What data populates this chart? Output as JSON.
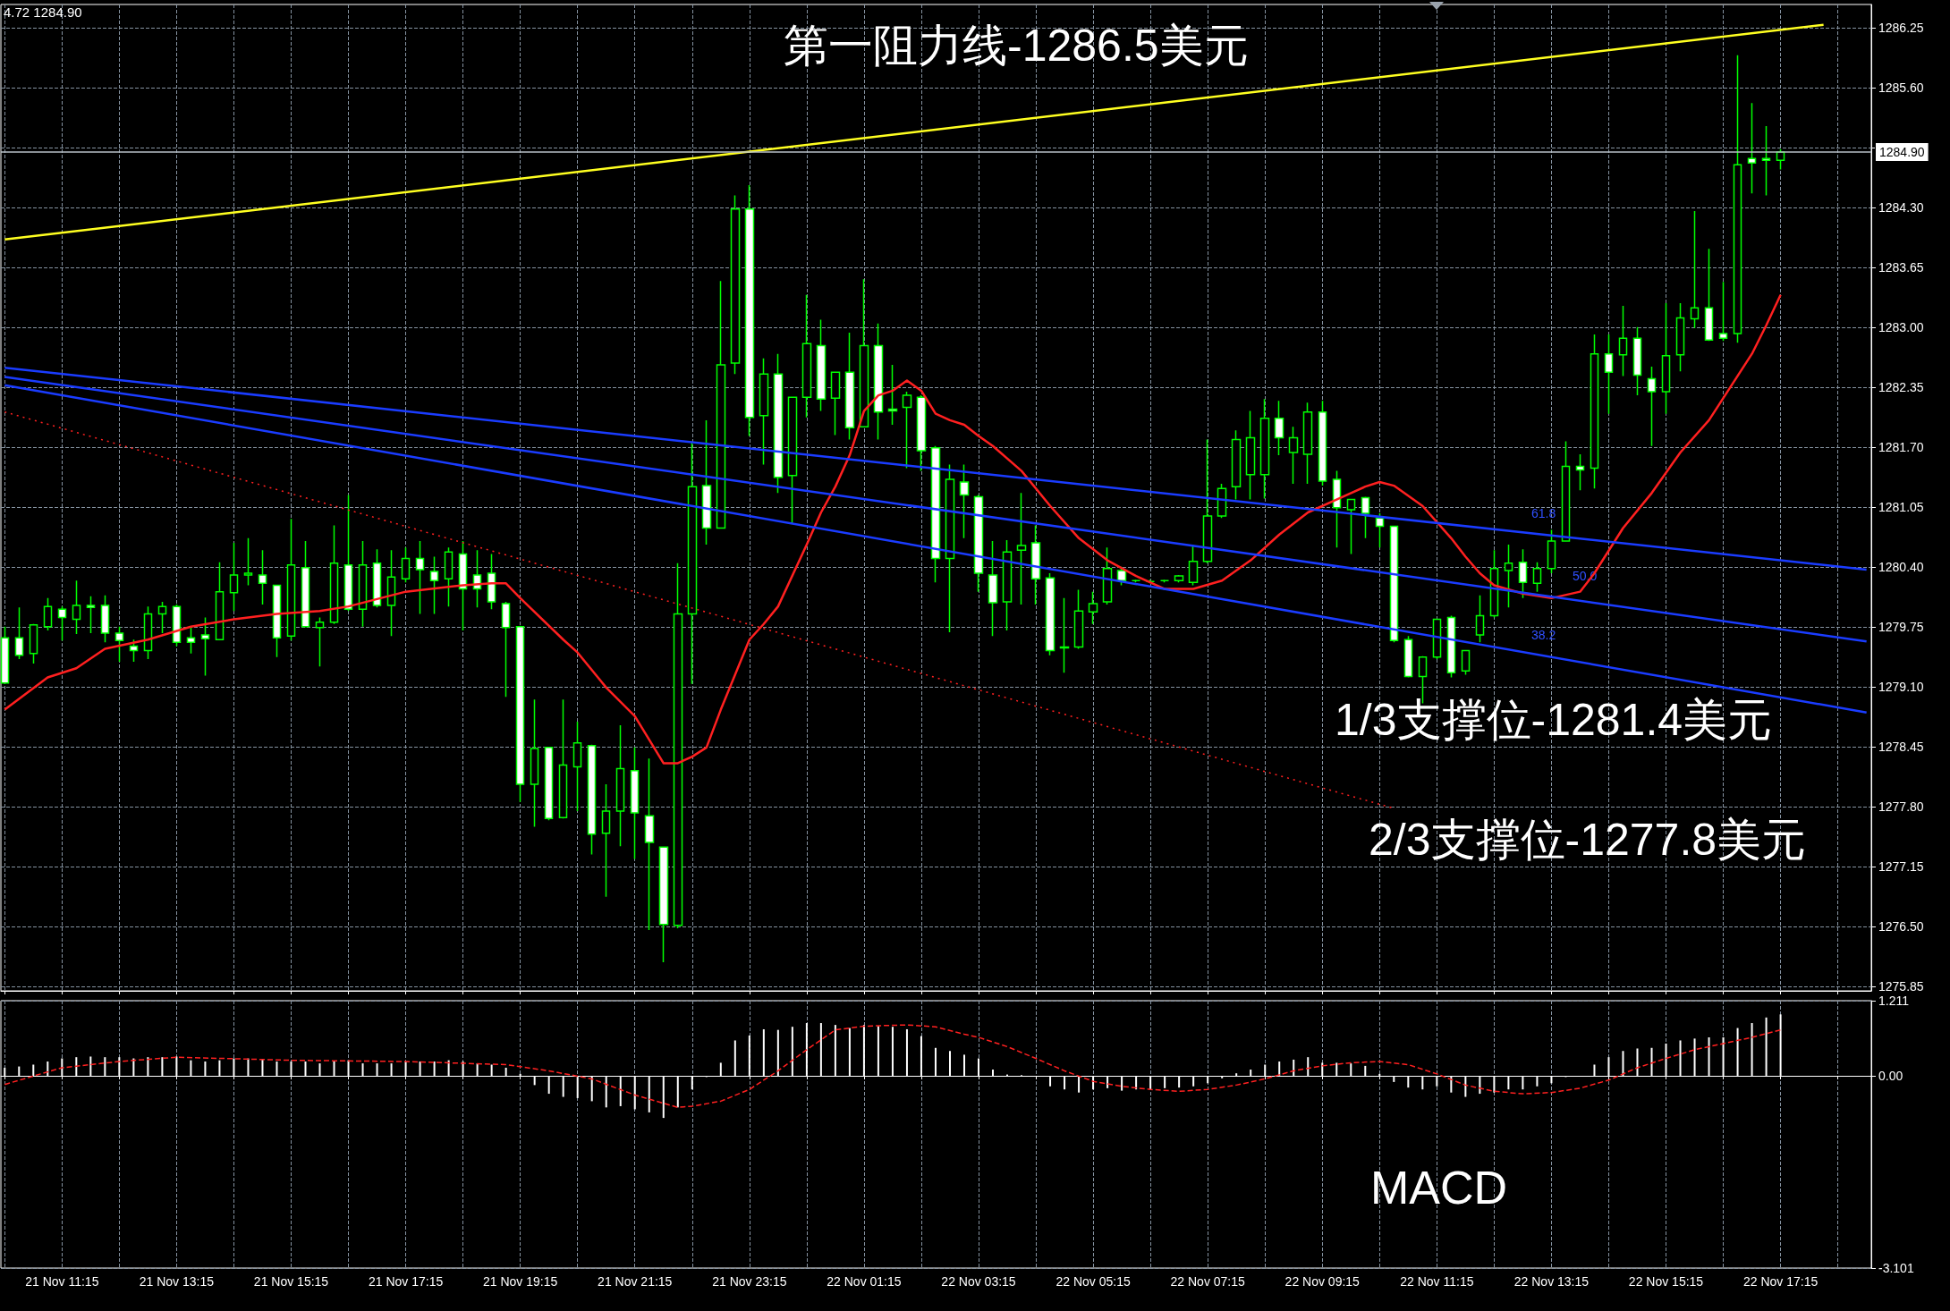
{
  "chart_data": [
    {
      "type": "candlestick",
      "grid": true,
      "marker": "none",
      "tick_labels": "y",
      "x": [
        "--11-21T10:15",
        "--11-21T10:30",
        "--11-21T10:45",
        "--11-21T11:00",
        "--11-21T11:15",
        "--11-21T11:30",
        "--11-21T11:45",
        "--11-21T12:00",
        "--11-21T12:15",
        "--11-21T12:30",
        "--11-21T12:45",
        "--11-21T13:00",
        "--11-21T13:15",
        "--11-21T13:30",
        "--11-21T13:45",
        "--11-21T14:00",
        "--11-21T14:15",
        "--11-21T14:30",
        "--11-21T14:45",
        "--11-21T15:00",
        "--11-21T15:15",
        "--11-21T15:30",
        "--11-21T15:45",
        "--11-21T16:00",
        "--11-21T16:15",
        "--11-21T16:30",
        "--11-21T16:45",
        "--11-21T17:00",
        "--11-21T17:15",
        "--11-21T17:30",
        "--11-21T17:45",
        "--11-21T18:00",
        "--11-21T18:15",
        "--11-21T18:30",
        "--11-21T18:45",
        "--11-21T19:00",
        "--11-21T19:15",
        "--11-21T19:30",
        "--11-21T19:45",
        "--11-21T20:00",
        "--11-21T20:15",
        "--11-21T20:30",
        "--11-21T20:45",
        "--11-21T21:00",
        "--11-21T21:15",
        "--11-21T21:30",
        "--11-21T21:45",
        "--11-21T22:00",
        "--11-21T22:15",
        "--11-21T22:30",
        "--11-21T22:45",
        "--11-21T23:00",
        "--11-21T23:15",
        "--11-21T23:30",
        "--11-21T23:45",
        "--11-22T00:00",
        "--11-22T00:15",
        "--11-22T00:30",
        "--11-22T00:45",
        "--11-22T01:00",
        "--11-22T01:15",
        "--11-22T01:30",
        "--11-22T01:45",
        "--11-22T02:00",
        "--11-22T02:15",
        "--11-22T02:30",
        "--11-22T02:45",
        "--11-22T03:00",
        "--11-22T03:15",
        "--11-22T03:30",
        "--11-22T03:45",
        "--11-22T04:00",
        "--11-22T04:15",
        "--11-22T04:30",
        "--11-22T04:45",
        "--11-22T05:00",
        "--11-22T05:15",
        "--11-22T05:30",
        "--11-22T05:45",
        "--11-22T06:00",
        "--11-22T06:15",
        "--11-22T06:30",
        "--11-22T06:45",
        "--11-22T07:00",
        "--11-22T07:15",
        "--11-22T07:30",
        "--11-22T07:45",
        "--11-22T08:00",
        "--11-22T08:15",
        "--11-22T08:30",
        "--11-22T08:45",
        "--11-22T09:00",
        "--11-22T09:15",
        "--11-22T09:30",
        "--11-22T09:45",
        "--11-22T10:00",
        "--11-22T10:15",
        "--11-22T10:30",
        "--11-22T10:45",
        "--11-22T11:00",
        "--11-22T11:15",
        "--11-22T11:30",
        "--11-22T11:45",
        "--11-22T12:00",
        "--11-22T12:15",
        "--11-22T12:30",
        "--11-22T12:45",
        "--11-22T13:00",
        "--11-22T13:15",
        "--11-22T13:30",
        "--11-22T13:45",
        "--11-22T14:00",
        "--11-22T14:15",
        "--11-22T14:30",
        "--11-22T14:45",
        "--11-22T15:00",
        "--11-22T15:15",
        "--11-22T15:30",
        "--11-22T15:45",
        "--11-22T16:00",
        "--11-22T16:15",
        "--11-22T16:30",
        "--11-22T16:45",
        "--11-22T17:00",
        "--11-22T17:15"
      ],
      "xlim": [
        "--11-21T10:11",
        "--11-22T18:50"
      ],
      "xticks": [
        {
          "value": "--11-21T10:15",
          "label": null
        },
        {
          "value": "--11-21T11:15",
          "label": "21 Nov 11:15"
        },
        {
          "value": "--11-21T12:15",
          "label": null
        },
        {
          "value": "--11-21T13:15",
          "label": "21 Nov 13:15"
        },
        {
          "value": "--11-21T14:15",
          "label": null
        },
        {
          "value": "--11-21T15:15",
          "label": "21 Nov 15:15"
        },
        {
          "value": "--11-21T16:15",
          "label": null
        },
        {
          "value": "--11-21T17:15",
          "label": "21 Nov 17:15"
        },
        {
          "value": "--11-21T18:15",
          "label": null
        },
        {
          "value": "--11-21T19:15",
          "label": "21 Nov 19:15"
        },
        {
          "value": "--11-21T20:15",
          "label": null
        },
        {
          "value": "--11-21T21:15",
          "label": "21 Nov 21:15"
        },
        {
          "value": "--11-21T22:15",
          "label": null
        },
        {
          "value": "--11-21T23:15",
          "label": "21 Nov 23:15"
        },
        {
          "value": "--11-22T00:15",
          "label": null
        },
        {
          "value": "--11-22T01:15",
          "label": "22 Nov 01:15"
        },
        {
          "value": "--11-22T02:15",
          "label": null
        },
        {
          "value": "--11-22T03:15",
          "label": "22 Nov 03:15"
        },
        {
          "value": "--11-22T04:15",
          "label": null
        },
        {
          "value": "--11-22T05:15",
          "label": "22 Nov 05:15"
        },
        {
          "value": "--11-22T06:15",
          "label": null
        },
        {
          "value": "--11-22T07:15",
          "label": "22 Nov 07:15"
        },
        {
          "value": "--11-22T08:15",
          "label": null
        },
        {
          "value": "--11-22T09:15",
          "label": "22 Nov 09:15"
        },
        {
          "value": "--11-22T10:15",
          "label": null
        },
        {
          "value": "--11-22T11:15",
          "label": "22 Nov 11:15"
        },
        {
          "value": "--11-22T12:15",
          "label": null
        },
        {
          "value": "--11-22T13:15",
          "label": "22 Nov 13:15"
        },
        {
          "value": "--11-22T14:15",
          "label": null
        },
        {
          "value": "--11-22T15:15",
          "label": "22 Nov 15:15"
        },
        {
          "value": "--11-22T16:15",
          "label": null
        },
        {
          "value": "--11-22T17:15",
          "label": "22 Nov 17:15"
        },
        {
          "value": "--11-22T18:15",
          "label": null
        }
      ],
      "ylim": [
        1275.8,
        1286.5
      ],
      "yticks": [
        1275.85,
        {
          "value": 1276.5,
          "label": "1276.50"
        },
        1277.15,
        {
          "value": 1277.8,
          "label": "1277.80"
        },
        1278.45,
        {
          "value": 1279.1,
          "label": "1279.10"
        },
        1279.75,
        {
          "value": 1280.4,
          "label": "1280.40"
        },
        1281.05,
        {
          "value": 1281.7,
          "label": "1281.70"
        },
        1282.35,
        {
          "value": 1283,
          "label": "1283.00"
        },
        1283.65,
        {
          "value": 1284.3,
          "label": "1284.30"
        },
        {
          "value": 1284.95,
          "label": null
        },
        {
          "value": 1285.6,
          "label": "1285.60"
        },
        1286.25
      ],
      "ref_lines": [
        {
          "axis": "y",
          "value": 1284.9,
          "label": "1284.90",
          "color": "#b8c0c8"
        }
      ],
      "annotations": [
        "4.72 1284.90",
        "第一阻力线-1286.5美元",
        "1/3支撑位-1281.4美元",
        "2/3支撑位-1277.8美元",
        "61.8",
        "50.0",
        "38.2"
      ],
      "series": [
        {
          "color": "#00ff00",
          "ohlc": [
            [
              1279.63,
              1279.75,
              1279.13,
              1279.14
            ],
            [
              1279.63,
              1279.96,
              1279.4,
              1279.44
            ],
            [
              1279.46,
              1279.78,
              1279.35,
              1279.77
            ],
            [
              1279.75,
              1280.06,
              1279.71,
              1279.97
            ],
            [
              1279.94,
              1279.97,
              1279.6,
              1279.85
            ],
            [
              1279.83,
              1280.25,
              1279.67,
              1279.98
            ],
            [
              1279.98,
              1280.08,
              1279.68,
              1279.96
            ],
            [
              1279.98,
              1280.09,
              1279.58,
              1279.68
            ],
            [
              1279.68,
              1279.75,
              1279.37,
              1279.6
            ],
            [
              1279.54,
              1279.61,
              1279.37,
              1279.49
            ],
            [
              1279.49,
              1279.97,
              1279.4,
              1279.89
            ],
            [
              1279.89,
              1280.02,
              1279.68,
              1279.97
            ],
            [
              1279.97,
              1279.99,
              1279.54,
              1279.58
            ],
            [
              1279.63,
              1279.75,
              1279.46,
              1279.58
            ],
            [
              1279.66,
              1279.85,
              1279.22,
              1279.62
            ],
            [
              1279.61,
              1280.45,
              1279.61,
              1280.13
            ],
            [
              1280.12,
              1280.66,
              1279.92,
              1280.31
            ],
            [
              1280.31,
              1280.71,
              1280.2,
              1280.33
            ],
            [
              1280.31,
              1280.58,
              1279.99,
              1280.22
            ],
            [
              1280.2,
              1280.2,
              1279.42,
              1279.63
            ],
            [
              1279.65,
              1280.92,
              1279.6,
              1280.42
            ],
            [
              1280.39,
              1280.68,
              1279.75,
              1279.75
            ],
            [
              1279.74,
              1279.85,
              1279.32,
              1279.8
            ],
            [
              1279.8,
              1280.85,
              1279.78,
              1280.44
            ],
            [
              1280.42,
              1281.18,
              1279.92,
              1279.94
            ],
            [
              1279.94,
              1280.68,
              1279.75,
              1280.42
            ],
            [
              1280.44,
              1280.59,
              1279.96,
              1279.98
            ],
            [
              1279.98,
              1280.58,
              1279.65,
              1280.29
            ],
            [
              1280.27,
              1280.61,
              1280.23,
              1280.49
            ],
            [
              1280.49,
              1280.68,
              1279.89,
              1280.37
            ],
            [
              1280.35,
              1280.51,
              1279.89,
              1280.25
            ],
            [
              1280.27,
              1280.61,
              1279.97,
              1280.56
            ],
            [
              1280.54,
              1280.68,
              1279.71,
              1280.16
            ],
            [
              1280.31,
              1280.58,
              1279.96,
              1280.16
            ],
            [
              1280.33,
              1280.54,
              1279.94,
              1280.02
            ],
            [
              1280,
              1280.02,
              1278.99,
              1279.74
            ],
            [
              1279.75,
              1279.76,
              1277.85,
              1278.04
            ],
            [
              1278.04,
              1278.96,
              1277.58,
              1278.43
            ],
            [
              1278.44,
              1278.44,
              1277.65,
              1277.67
            ],
            [
              1277.68,
              1278.96,
              1277.67,
              1278.25
            ],
            [
              1278.23,
              1278.72,
              1277.75,
              1278.49
            ],
            [
              1278.46,
              1278.47,
              1277.28,
              1277.5
            ],
            [
              1277.51,
              1278.04,
              1276.82,
              1277.75
            ],
            [
              1277.75,
              1278.68,
              1277.37,
              1278.21
            ],
            [
              1278.19,
              1278.44,
              1277.23,
              1277.73
            ],
            [
              1277.7,
              1278.32,
              1276.46,
              1277.41
            ],
            [
              1277.36,
              1277.36,
              1276.11,
              1276.52
            ],
            [
              1276.51,
              1280.44,
              1276.48,
              1279.89
            ],
            [
              1279.89,
              1281.75,
              1279.13,
              1281.27
            ],
            [
              1281.28,
              1281.99,
              1280.64,
              1280.82
            ],
            [
              1280.82,
              1283.5,
              1280.82,
              1282.59
            ],
            [
              1282.61,
              1284.43,
              1282.49,
              1284.28
            ],
            [
              1284.28,
              1284.54,
              1281.82,
              1282.02
            ],
            [
              1282.04,
              1282.66,
              1281.51,
              1282.49
            ],
            [
              1282.49,
              1282.71,
              1281.2,
              1281.37
            ],
            [
              1281.39,
              1282.24,
              1280.87,
              1282.24
            ],
            [
              1282.24,
              1283.35,
              1282.02,
              1282.82
            ],
            [
              1282.8,
              1283.08,
              1282.09,
              1282.22
            ],
            [
              1282.23,
              1282.51,
              1281.83,
              1282.51
            ],
            [
              1282.51,
              1282.94,
              1281.78,
              1281.91
            ],
            [
              1281.92,
              1283.52,
              1281.92,
              1282.8
            ],
            [
              1282.8,
              1283.04,
              1281.78,
              1282.08
            ],
            [
              1282.11,
              1282.59,
              1281.94,
              1282.09
            ],
            [
              1282.13,
              1282.3,
              1281.47,
              1282.26
            ],
            [
              1282.24,
              1282.26,
              1281.44,
              1281.66
            ],
            [
              1281.69,
              1281.71,
              1280.23,
              1280.49
            ],
            [
              1280.49,
              1281.51,
              1279.69,
              1281.35
            ],
            [
              1281.32,
              1281.51,
              1280.71,
              1281.18
            ],
            [
              1281.16,
              1281.18,
              1280.13,
              1280.33
            ],
            [
              1280.31,
              1280.68,
              1279.65,
              1280.01
            ],
            [
              1280.02,
              1280.69,
              1279.71,
              1280.56
            ],
            [
              1280.58,
              1281.2,
              1279.99,
              1280.63
            ],
            [
              1280.66,
              1280.85,
              1279.99,
              1280.27
            ],
            [
              1280.28,
              1280.33,
              1279.44,
              1279.49
            ],
            [
              1279.53,
              1280.06,
              1279.25,
              1279.52
            ],
            [
              1279.53,
              1280.15,
              1279.51,
              1279.92
            ],
            [
              1279.91,
              1280.13,
              1279.78,
              1280
            ],
            [
              1280.02,
              1280.61,
              1279.99,
              1280.38
            ],
            [
              1280.36,
              1280.4,
              1280.2,
              1280.25
            ],
            [
              1280.25,
              1280.26,
              1280.23,
              1280.25
            ],
            [
              1280.24,
              1280.26,
              1280.23,
              1280.24
            ],
            [
              1280.25,
              1280.26,
              1280.23,
              1280.25
            ],
            [
              1280.25,
              1280.31,
              1280.23,
              1280.3
            ],
            [
              1280.23,
              1280.64,
              1280.2,
              1280.46
            ],
            [
              1280.46,
              1281.78,
              1280.44,
              1280.95
            ],
            [
              1280.95,
              1281.3,
              1280.93,
              1281.25
            ],
            [
              1281.27,
              1281.88,
              1281.13,
              1281.78
            ],
            [
              1281.4,
              1282.09,
              1281.13,
              1281.8
            ],
            [
              1281.4,
              1282.22,
              1281.14,
              1282.01
            ],
            [
              1282.01,
              1282.2,
              1281.61,
              1281.8
            ],
            [
              1281.64,
              1281.92,
              1281.3,
              1281.8
            ],
            [
              1281.62,
              1282.18,
              1281.3,
              1282.08
            ],
            [
              1282.08,
              1282.2,
              1281.28,
              1281.33
            ],
            [
              1281.35,
              1281.44,
              1280.61,
              1281.04
            ],
            [
              1281.02,
              1281.13,
              1280.54,
              1281.13
            ],
            [
              1281.15,
              1281.16,
              1280.71,
              1280.98
            ],
            [
              1280.93,
              1280.98,
              1280.61,
              1280.84
            ],
            [
              1280.84,
              1280.84,
              1279.58,
              1279.6
            ],
            [
              1279.61,
              1279.65,
              1279.2,
              1279.21
            ],
            [
              1279.21,
              1279.43,
              1278.92,
              1279.42
            ],
            [
              1279.42,
              1279.83,
              1279.4,
              1279.83
            ],
            [
              1279.85,
              1279.87,
              1279.2,
              1279.25
            ],
            [
              1279.27,
              1279.49,
              1279.23,
              1279.49
            ],
            [
              1279.66,
              1280.09,
              1279.58,
              1279.87
            ],
            [
              1279.87,
              1280.58,
              1279.85,
              1280.38
            ],
            [
              1280.36,
              1280.64,
              1279.96,
              1280.44
            ],
            [
              1280.45,
              1280.59,
              1280.06,
              1280.23
            ],
            [
              1280.22,
              1280.45,
              1280.13,
              1280.38
            ],
            [
              1280.38,
              1280.8,
              1280.33,
              1280.68
            ],
            [
              1280.68,
              1281.76,
              1280.68,
              1281.49
            ],
            [
              1281.49,
              1281.62,
              1281.23,
              1281.45
            ],
            [
              1281.47,
              1282.92,
              1281.25,
              1282.71
            ],
            [
              1282.71,
              1282.92,
              1282.06,
              1282.51
            ],
            [
              1282.7,
              1283.23,
              1282.47,
              1282.88
            ],
            [
              1282.88,
              1283,
              1282.26,
              1282.48
            ],
            [
              1282.44,
              1282.57,
              1281.71,
              1282.3
            ],
            [
              1282.3,
              1283.26,
              1282.06,
              1282.69
            ],
            [
              1282.7,
              1283.26,
              1282.52,
              1283.1
            ],
            [
              1283.09,
              1284.26,
              1282.99,
              1283.21
            ],
            [
              1283.21,
              1283.85,
              1282.85,
              1282.86
            ],
            [
              1282.93,
              1283.49,
              1282.85,
              1282.88
            ],
            [
              1282.93,
              1285.95,
              1282.83,
              1284.76
            ],
            [
              1284.83,
              1285.43,
              1284.45,
              1284.78
            ],
            [
              1284.83,
              1285.18,
              1284.43,
              1284.81
            ],
            [
              1284.81,
              1284.93,
              1284.71,
              1284.9
            ]
          ]
        },
        {
          "type": "line",
          "color": "#ff2020",
          "x": [
            "--11-21T10:15",
            "--11-21T11:00",
            "--11-21T11:30",
            "--11-21T12:00",
            "--11-21T12:45",
            "--11-21T13:30",
            "--11-21T14:15",
            "--11-21T15:00",
            "--11-21T15:45",
            "--11-21T16:15",
            "--11-21T17:15",
            "--11-21T18:15",
            "--11-21T18:45",
            "--11-21T19:00",
            "--11-21T19:15",
            "--11-21T20:00",
            "--11-21T20:15",
            "--11-21T20:45",
            "--11-21T21:15",
            "--11-21T21:45",
            "--11-21T22:00",
            "--11-21T22:15",
            "--11-21T22:30",
            "--11-21T22:45",
            "--11-21T23:15",
            "--11-21T23:30",
            "--11-21T23:45",
            "--11-22T00:15",
            "--11-22T00:30",
            "--11-22T00:45",
            "--11-22T01:00",
            "--11-22T01:15",
            "--11-22T01:30",
            "--11-22T01:45",
            "--11-22T02:00",
            "--11-22T02:15",
            "--11-22T02:30",
            "--11-22T02:45",
            "--11-22T03:00",
            "--11-22T03:15",
            "--11-22T03:30",
            "--11-22T04:00",
            "--11-22T04:30",
            "--11-22T05:00",
            "--11-22T05:30",
            "--11-22T06:00",
            "--11-22T06:30",
            "--11-22T07:00",
            "--11-22T07:30",
            "--11-22T08:00",
            "--11-22T08:30",
            "--11-22T09:00",
            "--11-22T09:30",
            "--11-22T10:00",
            "--11-22T10:15",
            "--11-22T10:30",
            "--11-22T11:00",
            "--11-22T11:30",
            "--11-22T11:45",
            "--11-22T12:00",
            "--11-22T12:15",
            "--11-22T12:45",
            "--11-22T13:15",
            "--11-22T13:45",
            "--11-22T14:00",
            "--11-22T14:30",
            "--11-22T15:00",
            "--11-22T15:30",
            "--11-22T16:00",
            "--11-22T16:15",
            "--11-22T16:30",
            "--11-22T16:45",
            "--11-22T17:00",
            "--11-22T17:15"
          ],
          "values": [
            1278.85,
            1279.2,
            1279.3,
            1279.51,
            1279.61,
            1279.75,
            1279.83,
            1279.89,
            1279.92,
            1279.97,
            1280.13,
            1280.2,
            1280.22,
            1280.22,
            1280.06,
            1279.61,
            1279.47,
            1279.09,
            1278.78,
            1278.27,
            1278.27,
            1278.34,
            1278.44,
            1278.85,
            1279.61,
            1279.78,
            1279.97,
            1280.64,
            1280.99,
            1281.27,
            1281.61,
            1282.09,
            1282.26,
            1282.31,
            1282.42,
            1282.31,
            1282.06,
            1281.99,
            1281.94,
            1281.82,
            1281.71,
            1281.44,
            1281.06,
            1280.71,
            1280.47,
            1280.3,
            1280.16,
            1280.16,
            1280.25,
            1280.47,
            1280.75,
            1280.99,
            1281.13,
            1281.27,
            1281.32,
            1281.28,
            1281.06,
            1280.71,
            1280.51,
            1280.33,
            1280.2,
            1280.11,
            1280.06,
            1280.13,
            1280.33,
            1280.82,
            1281.2,
            1281.64,
            1281.99,
            1282.23,
            1282.47,
            1282.71,
            1283.02,
            1283.35
          ]
        },
        {
          "type": "line",
          "color": "#ffff20",
          "x": [
            "--11-21T10:15",
            "--11-22T18:00"
          ],
          "values": [
            1283.95,
            1286.28
          ]
        },
        {
          "type": "line",
          "color": "#1a3cff",
          "x": [
            "--11-21T10:15",
            "--11-22T18:45"
          ],
          "values": [
            1282.56,
            1280.37
          ]
        },
        {
          "type": "line",
          "color": "#1a3cff",
          "x": [
            "--11-21T10:15",
            "--11-22T18:45"
          ],
          "values": [
            1282.46,
            1279.59
          ]
        },
        {
          "type": "line",
          "color": "#1a3cff",
          "x": [
            "--11-21T10:15",
            "--11-22T18:45"
          ],
          "values": [
            1282.37,
            1278.82
          ]
        },
        {
          "type": "line",
          "color": "#ff2020",
          "line_style": "dotted",
          "x": [
            "--11-21T10:15",
            "--11-22T10:30"
          ],
          "values": [
            1282.08,
            1277.78
          ]
        }
      ]
    },
    {
      "type": "bar",
      "grid": true,
      "marker": "none",
      "x": [
        "--11-21T10:15",
        "--11-21T10:30",
        "--11-21T10:45",
        "--11-21T11:00",
        "--11-21T11:15",
        "--11-21T11:30",
        "--11-21T11:45",
        "--11-21T12:00",
        "--11-21T12:15",
        "--11-21T12:30",
        "--11-21T12:45",
        "--11-21T13:00",
        "--11-21T13:15",
        "--11-21T13:30",
        "--11-21T13:45",
        "--11-21T14:00",
        "--11-21T14:15",
        "--11-21T14:30",
        "--11-21T14:45",
        "--11-21T15:00",
        "--11-21T15:15",
        "--11-21T15:30",
        "--11-21T15:45",
        "--11-21T16:00",
        "--11-21T16:15",
        "--11-21T16:30",
        "--11-21T16:45",
        "--11-21T17:00",
        "--11-21T17:15",
        "--11-21T17:30",
        "--11-21T17:45",
        "--11-21T18:00",
        "--11-21T18:15",
        "--11-21T18:30",
        "--11-21T18:45",
        "--11-21T19:00",
        "--11-21T19:15",
        "--11-21T19:30",
        "--11-21T19:45",
        "--11-21T20:00",
        "--11-21T20:15",
        "--11-21T20:30",
        "--11-21T20:45",
        "--11-21T21:00",
        "--11-21T21:15",
        "--11-21T21:30",
        "--11-21T21:45",
        "--11-21T22:00",
        "--11-21T22:15",
        "--11-21T22:30",
        "--11-21T22:45",
        "--11-21T23:00",
        "--11-21T23:15",
        "--11-21T23:30",
        "--11-21T23:45",
        "--11-22T00:00",
        "--11-22T00:15",
        "--11-22T00:30",
        "--11-22T00:45",
        "--11-22T01:00",
        "--11-22T01:15",
        "--11-22T01:30",
        "--11-22T01:45",
        "--11-22T02:00",
        "--11-22T02:15",
        "--11-22T02:30",
        "--11-22T02:45",
        "--11-22T03:00",
        "--11-22T03:15",
        "--11-22T03:30",
        "--11-22T03:45",
        "--11-22T04:00",
        "--11-22T04:15",
        "--11-22T04:30",
        "--11-22T04:45",
        "--11-22T05:00",
        "--11-22T05:15",
        "--11-22T05:30",
        "--11-22T05:45",
        "--11-22T06:00",
        "--11-22T06:15",
        "--11-22T06:30",
        "--11-22T06:45",
        "--11-22T07:00",
        "--11-22T07:15",
        "--11-22T07:30",
        "--11-22T07:45",
        "--11-22T08:00",
        "--11-22T08:15",
        "--11-22T08:30",
        "--11-22T08:45",
        "--11-22T09:00",
        "--11-22T09:15",
        "--11-22T09:30",
        "--11-22T09:45",
        "--11-22T10:00",
        "--11-22T10:15",
        "--11-22T10:30",
        "--11-22T10:45",
        "--11-22T11:00",
        "--11-22T11:15",
        "--11-22T11:30",
        "--11-22T11:45",
        "--11-22T12:00",
        "--11-22T12:15",
        "--11-22T12:30",
        "--11-22T12:45",
        "--11-22T13:00",
        "--11-22T13:15",
        "--11-22T13:30",
        "--11-22T13:45",
        "--11-22T14:00",
        "--11-22T14:15",
        "--11-22T14:30",
        "--11-22T14:45",
        "--11-22T15:00",
        "--11-22T15:15",
        "--11-22T15:30",
        "--11-22T15:45",
        "--11-22T16:00",
        "--11-22T16:15",
        "--11-22T16:30",
        "--11-22T16:45",
        "--11-22T17:00",
        "--11-22T17:15"
      ],
      "xlim": [
        "--11-21T10:11",
        "--11-22T18:50"
      ],
      "xticks": [
        {
          "value": "--11-21T10:15",
          "label": null
        },
        {
          "value": "--11-21T11:15",
          "label": "21 Nov 11:15"
        },
        {
          "value": "--11-21T12:15",
          "label": null
        },
        {
          "value": "--11-21T13:15",
          "label": "21 Nov 13:15"
        },
        {
          "value": "--11-21T14:15",
          "label": null
        },
        {
          "value": "--11-21T15:15",
          "label": "21 Nov 15:15"
        },
        {
          "value": "--11-21T16:15",
          "label": null
        },
        {
          "value": "--11-21T17:15",
          "label": "21 Nov 17:15"
        },
        {
          "value": "--11-21T18:15",
          "label": null
        },
        {
          "value": "--11-21T19:15",
          "label": "21 Nov 19:15"
        },
        {
          "value": "--11-21T20:15",
          "label": null
        },
        {
          "value": "--11-21T21:15",
          "label": "21 Nov 21:15"
        },
        {
          "value": "--11-21T22:15",
          "label": null
        },
        {
          "value": "--11-21T23:15",
          "label": "21 Nov 23:15"
        },
        {
          "value": "--11-22T00:15",
          "label": null
        },
        {
          "value": "--11-22T01:15",
          "label": "22 Nov 01:15"
        },
        {
          "value": "--11-22T02:15",
          "label": null
        },
        {
          "value": "--11-22T03:15",
          "label": "22 Nov 03:15"
        },
        {
          "value": "--11-22T04:15",
          "label": null
        },
        {
          "value": "--11-22T05:15",
          "label": "22 Nov 05:15"
        },
        {
          "value": "--11-22T06:15",
          "label": null
        },
        {
          "value": "--11-22T07:15",
          "label": "22 Nov 07:15"
        },
        {
          "value": "--11-22T08:15",
          "label": null
        },
        {
          "value": "--11-22T09:15",
          "label": "22 Nov 09:15"
        },
        {
          "value": "--11-22T10:15",
          "label": null
        },
        {
          "value": "--11-22T11:15",
          "label": "22 Nov 11:15"
        },
        {
          "value": "--11-22T12:15",
          "label": null
        },
        {
          "value": "--11-22T13:15",
          "label": "22 Nov 13:15"
        },
        {
          "value": "--11-22T14:15",
          "label": null
        },
        {
          "value": "--11-22T15:15",
          "label": "22 Nov 15:15"
        },
        {
          "value": "--11-22T16:15",
          "label": null
        },
        {
          "value": "--11-22T17:15",
          "label": "22 Nov 17:15"
        },
        {
          "value": "--11-22T18:15",
          "label": null
        }
      ],
      "ylim": [
        -3.101,
        1.211
      ],
      "yticks": [
        -3.101,
        {
          "value": 0,
          "label": "0.00"
        },
        1.211
      ],
      "annotations": [
        "MACD"
      ],
      "series": [
        {
          "color": "#ffffff",
          "values": [
            0.13,
            0.15,
            0.18,
            0.23,
            0.28,
            0.3,
            0.31,
            0.3,
            0.3,
            0.28,
            0.3,
            0.3,
            0.31,
            0.25,
            0.23,
            0.25,
            0.28,
            0.28,
            0.26,
            0.23,
            0.23,
            0.23,
            0.2,
            0.23,
            0.25,
            0.2,
            0.2,
            0.2,
            0.23,
            0.23,
            0.23,
            0.25,
            0.23,
            0.2,
            0.18,
            0.13,
            0.03,
            -0.15,
            -0.29,
            -0.34,
            -0.36,
            -0.41,
            -0.51,
            -0.49,
            -0.54,
            -0.59,
            -0.68,
            -0.51,
            -0.22,
            -0.02,
            0.21,
            0.57,
            0.65,
            0.75,
            0.74,
            0.79,
            0.85,
            0.85,
            0.82,
            0.77,
            0.82,
            0.8,
            0.79,
            0.75,
            0.64,
            0.45,
            0.4,
            0.34,
            0.28,
            0.1,
            0.02,
            0.01,
            null,
            -0.17,
            -0.22,
            -0.27,
            -0.22,
            -0.2,
            -0.24,
            -0.22,
            -0.22,
            -0.2,
            -0.19,
            -0.17,
            -0.12,
            -0.04,
            0.04,
            0.1,
            0.18,
            0.23,
            0.26,
            0.3,
            0.21,
            0.21,
            0.2,
            0.16,
            0.03,
            -0.1,
            -0.19,
            -0.22,
            -0.17,
            -0.27,
            -0.34,
            -0.29,
            -0.27,
            -0.22,
            -0.22,
            -0.17,
            -0.12,
            -0.02,
            null,
            0.18,
            0.3,
            0.4,
            0.44,
            0.45,
            0.52,
            0.57,
            0.6,
            0.62,
            0.62,
            0.77,
            0.85,
            0.94,
            0.99
          ]
        },
        {
          "type": "line",
          "color": "#ff2020",
          "line_style": "dashed",
          "x": [
            "--11-21T10:15",
            "--11-21T11:15",
            "--11-21T12:15",
            "--11-21T13:15",
            "--11-21T15:15",
            "--11-21T17:15",
            "--11-21T19:00",
            "--11-21T19:45",
            "--11-21T20:30",
            "--11-21T21:15",
            "--11-21T22:00",
            "--11-21T22:15",
            "--11-21T22:45",
            "--11-21T23:15",
            "--11-21T23:45",
            "--11-22T00:15",
            "--11-22T00:45",
            "--11-22T01:15",
            "--11-22T02:00",
            "--11-22T02:30",
            "--11-22T03:00",
            "--11-22T03:15",
            "--11-22T03:45",
            "--11-22T04:15",
            "--11-22T04:45",
            "--11-22T05:15",
            "--11-22T05:45",
            "--11-22T06:15",
            "--11-22T06:45",
            "--11-22T07:15",
            "--11-22T07:45",
            "--11-22T08:15",
            "--11-22T08:45",
            "--11-22T09:15",
            "--11-22T09:45",
            "--11-22T10:15",
            "--11-22T10:45",
            "--11-22T11:15",
            "--11-22T11:45",
            "--11-22T12:15",
            "--11-22T12:45",
            "--11-22T13:15",
            "--11-22T13:45",
            "--11-22T14:15",
            "--11-22T14:45",
            "--11-22T15:15",
            "--11-22T15:45",
            "--11-22T16:15",
            "--11-22T16:45",
            "--11-22T17:15"
          ],
          "values": [
            -0.14,
            0.13,
            0.23,
            0.3,
            0.25,
            0.23,
            0.18,
            0.08,
            -0.05,
            -0.31,
            -0.51,
            -0.49,
            -0.41,
            -0.22,
            0.08,
            0.42,
            0.74,
            0.8,
            0.82,
            0.79,
            0.67,
            0.62,
            0.47,
            0.28,
            0.08,
            -0.09,
            -0.17,
            -0.22,
            -0.25,
            -0.22,
            -0.15,
            -0.05,
            0.08,
            0.16,
            0.21,
            0.23,
            0.18,
            0.03,
            -0.15,
            -0.25,
            -0.29,
            -0.27,
            -0.2,
            -0.07,
            0.13,
            0.28,
            0.42,
            0.52,
            0.62,
            0.74
          ]
        }
      ]
    }
  ]
}
